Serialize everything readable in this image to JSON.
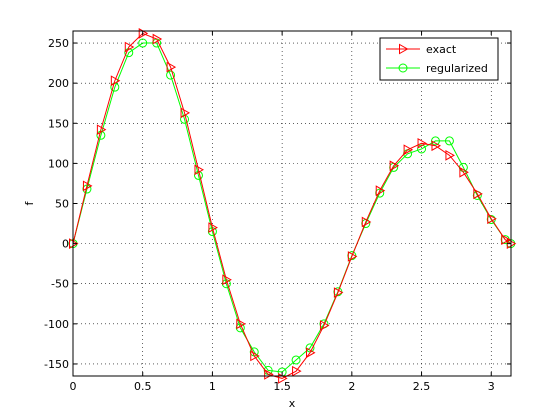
{
  "chart_data": {
    "type": "line",
    "xlabel": "x",
    "ylabel": "f",
    "xlim": [
      0,
      3.1416
    ],
    "ylim": [
      -165,
      265
    ],
    "xticks": [
      0,
      0.5,
      1,
      1.5,
      2,
      2.5,
      3
    ],
    "xtick_labels": [
      "0",
      "0.5",
      "1",
      "1.5",
      "2",
      "2.5",
      "3"
    ],
    "yticks": [
      -150,
      -100,
      -50,
      0,
      50,
      100,
      150,
      200,
      250
    ],
    "ytick_labels": [
      "-150",
      "-100",
      "-50",
      "0",
      "50",
      "100",
      "150",
      "200",
      "250"
    ],
    "grid": true,
    "legend": "top-right",
    "series": [
      {
        "name": "exact",
        "color": "#ff0000",
        "marker": "triangle-right",
        "x": [
          0.0,
          0.1,
          0.2,
          0.3,
          0.4,
          0.5,
          0.6,
          0.7,
          0.8,
          0.9,
          1.0,
          1.1,
          1.2,
          1.3,
          1.4,
          1.5,
          1.6,
          1.7,
          1.8,
          1.9,
          2.0,
          2.1,
          2.2,
          2.3,
          2.4,
          2.5,
          2.6,
          2.7,
          2.8,
          2.9,
          3.0,
          3.1,
          3.14
        ],
        "y": [
          0,
          72,
          142,
          203,
          245,
          262,
          255,
          220,
          163,
          92,
          20,
          -45,
          -100,
          -140,
          -163,
          -168,
          -159,
          -136,
          -102,
          -61,
          -16,
          27,
          66,
          97,
          117,
          125,
          122,
          110,
          89,
          62,
          31,
          5,
          0
        ]
      },
      {
        "name": "regularized",
        "color": "#00ff00",
        "marker": "circle",
        "x": [
          0.0,
          0.1,
          0.2,
          0.3,
          0.4,
          0.5,
          0.6,
          0.7,
          0.8,
          0.9,
          1.0,
          1.1,
          1.2,
          1.3,
          1.4,
          1.5,
          1.6,
          1.7,
          1.8,
          1.9,
          2.0,
          2.1,
          2.2,
          2.3,
          2.4,
          2.5,
          2.6,
          2.7,
          2.8,
          2.9,
          3.0,
          3.1,
          3.14
        ],
        "y": [
          0,
          68,
          135,
          195,
          238,
          250,
          250,
          210,
          155,
          85,
          15,
          -50,
          -105,
          -135,
          -158,
          -160,
          -145,
          -130,
          -100,
          -60,
          -15,
          25,
          63,
          95,
          112,
          118,
          128,
          128,
          95,
          60,
          30,
          5,
          0
        ]
      }
    ]
  }
}
